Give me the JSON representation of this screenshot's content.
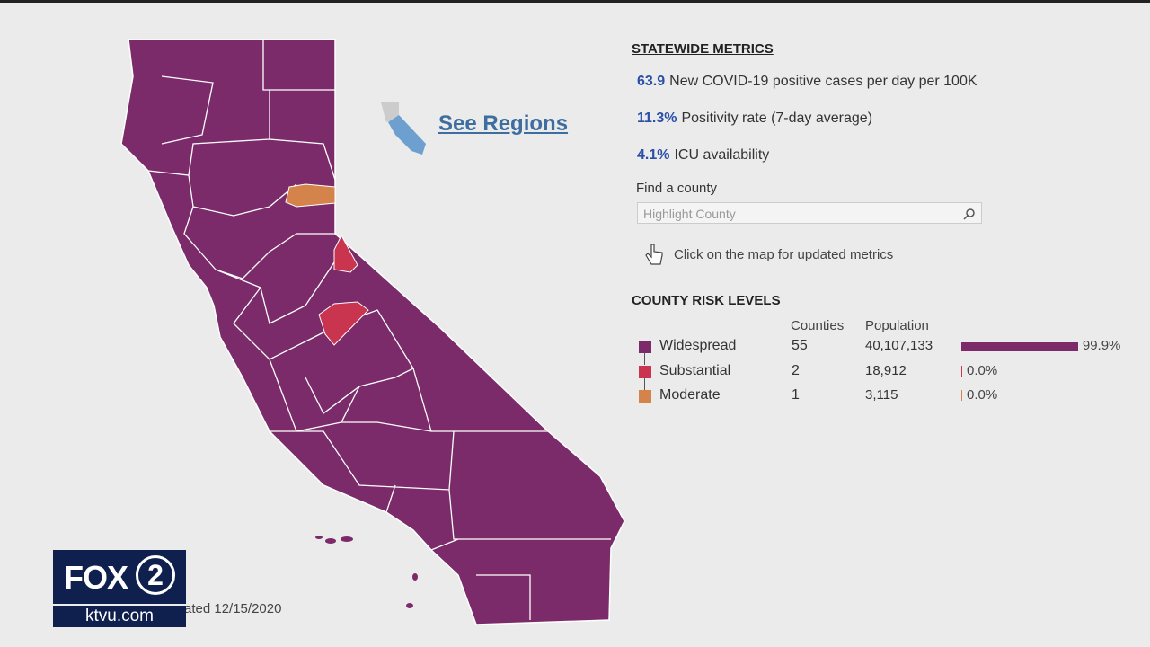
{
  "see_regions": "See Regions",
  "statewide": {
    "title": "STATEWIDE METRICS",
    "metrics": [
      {
        "value": "63.9",
        "label": "New COVID-19 positive cases per day per 100K"
      },
      {
        "value": "11.3%",
        "label": "Positivity rate (7-day average)"
      },
      {
        "value": "4.1%",
        "label": "ICU availability"
      }
    ]
  },
  "search": {
    "label": "Find a county",
    "placeholder": "Highlight County"
  },
  "hint": "Click on the map for updated metrics",
  "risk": {
    "title": "COUNTY RISK LEVELS",
    "headers": [
      "Counties",
      "Population"
    ],
    "rows": [
      {
        "level": "Widespread",
        "color": "#7b2b6a",
        "counties": "55",
        "population": "40,107,133",
        "share": {
          "value": 99.9,
          "label": "99.9%"
        }
      },
      {
        "level": "Substantial",
        "color": "#c9344f",
        "counties": "2",
        "population": "18,912",
        "share": {
          "value": 0.0,
          "label": "0.0%"
        }
      },
      {
        "level": "Moderate",
        "color": "#d4834a",
        "counties": "1",
        "population": "3,115",
        "share": {
          "value": 0.0,
          "label": "0.0%"
        }
      }
    ]
  },
  "updated": "ated 12/15/2020",
  "logo": {
    "brand": "FOX",
    "number": "2",
    "site": "ktvu.com"
  }
}
